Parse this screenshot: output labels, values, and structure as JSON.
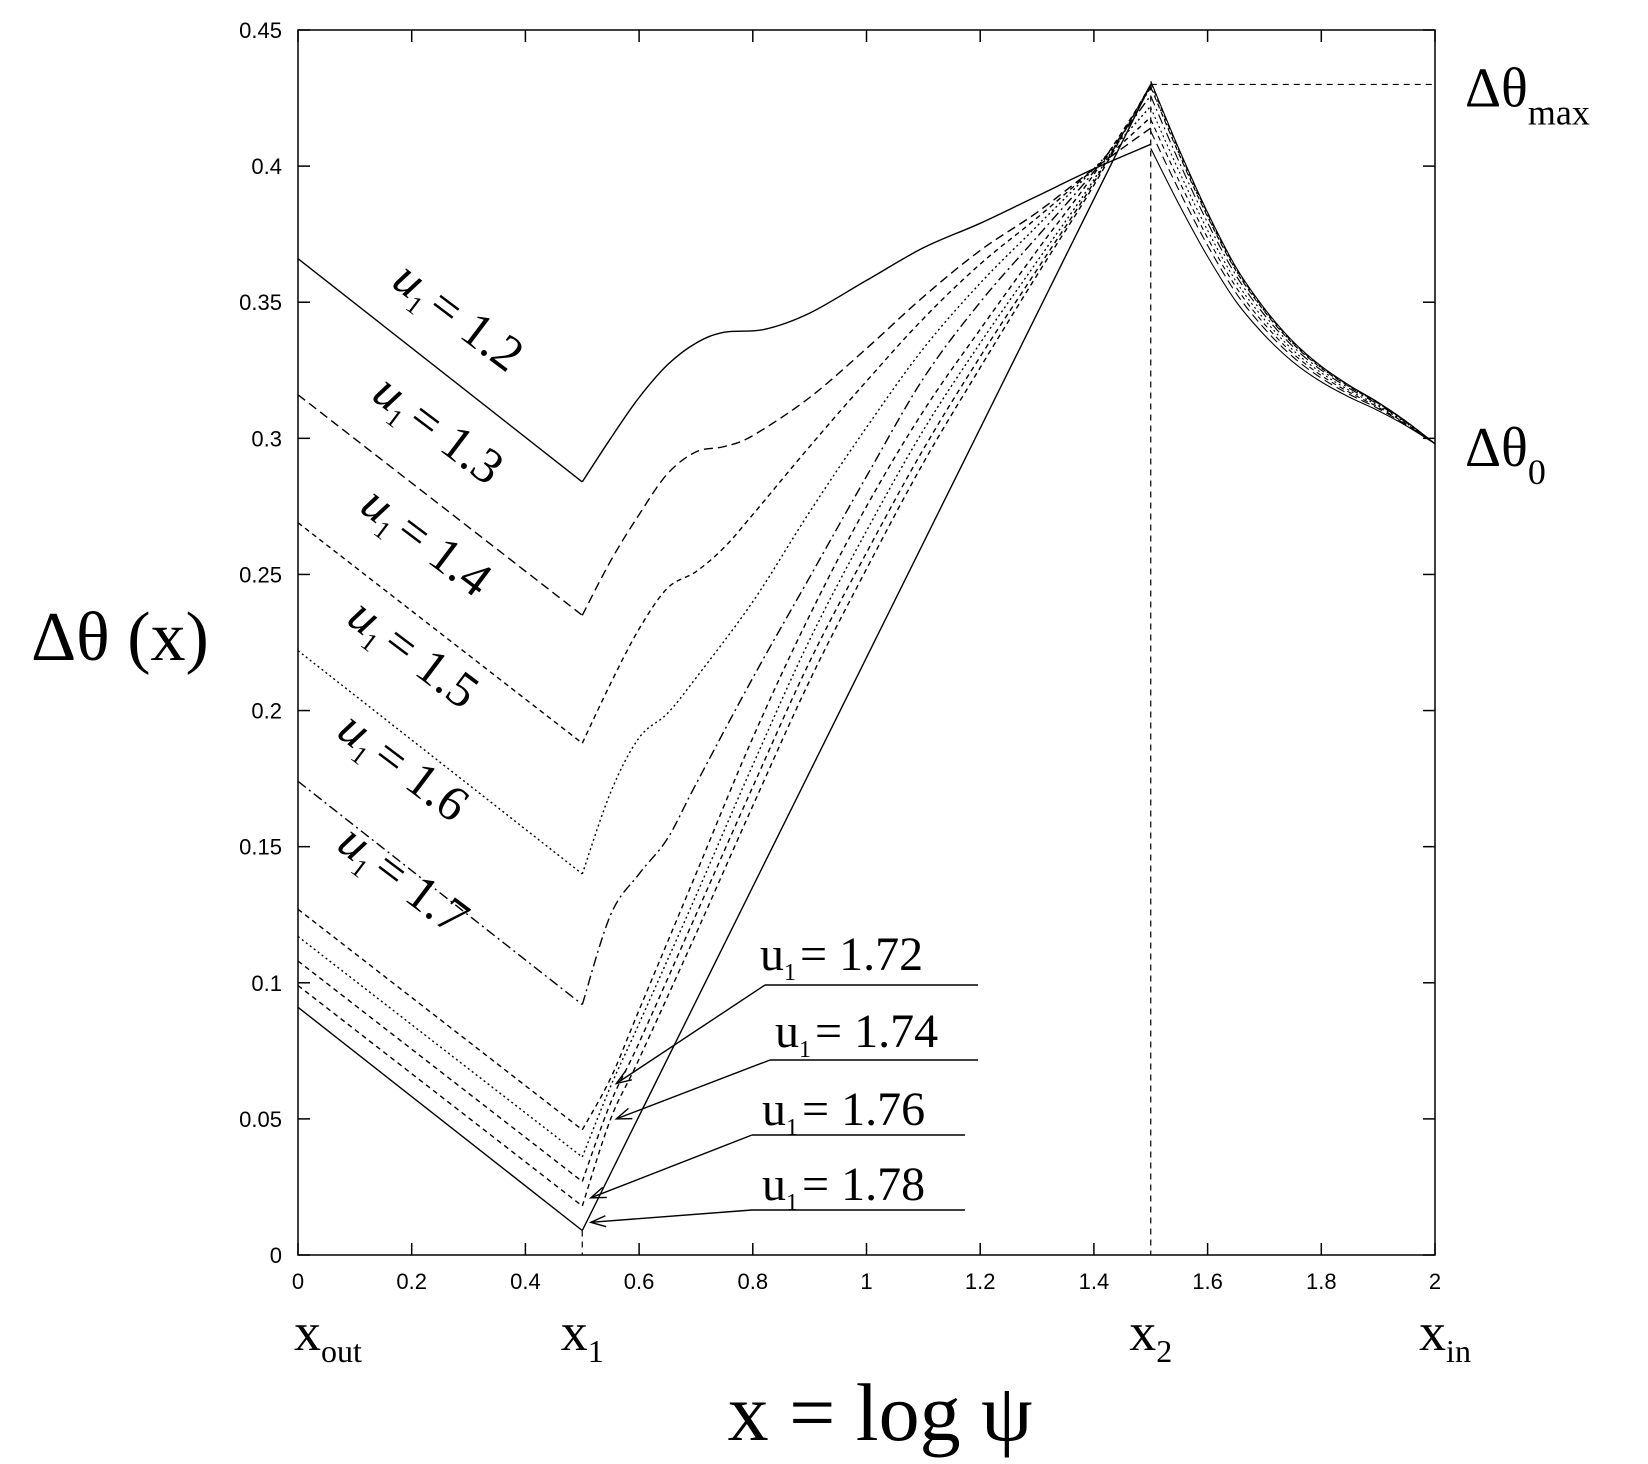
{
  "chart_data": {
    "type": "line",
    "ylabel": "Δθ (x)",
    "xlabel": "x = log ψ",
    "xlim": [
      0,
      2
    ],
    "ylim": [
      0,
      0.45
    ],
    "x_ticks": [
      "0",
      "0.2",
      "0.4",
      "0.6",
      "0.8",
      "1",
      "1.2",
      "1.4",
      "1.6",
      "1.8",
      "2"
    ],
    "y_ticks": [
      "0",
      "0.05",
      "0.1",
      "0.15",
      "0.2",
      "0.25",
      "0.3",
      "0.35",
      "0.4",
      "0.45"
    ],
    "x_markers": [
      {
        "x": 0,
        "main": "x",
        "sub": "out"
      },
      {
        "x": 0.5,
        "main": "x",
        "sub": "1"
      },
      {
        "x": 1.5,
        "main": "x",
        "sub": "2"
      },
      {
        "x": 2,
        "main": "x",
        "sub": "in"
      }
    ],
    "right_markers": [
      {
        "y": 0.43,
        "main": "Δθ",
        "sub": "max"
      },
      {
        "y": 0.298,
        "main": "Δθ",
        "sub": "0"
      }
    ],
    "x1": 0.5,
    "x2": 1.5,
    "theta_max": 0.43,
    "theta_0": 0.298,
    "series": [
      {
        "name": "u1 = 1.2",
        "label_main": "u",
        "label_sub": "1",
        "label_value": "= 1.2",
        "dash": "solid",
        "y_out": 0.366,
        "y_x1": 0.284,
        "y_x2": 0.408,
        "middle": [
          [
            0.5,
            0.284
          ],
          [
            0.55,
            0.3
          ],
          [
            0.6,
            0.315
          ],
          [
            0.65,
            0.327
          ],
          [
            0.7,
            0.335
          ],
          [
            0.75,
            0.339
          ],
          [
            0.82,
            0.34
          ],
          [
            0.9,
            0.346
          ],
          [
            1.0,
            0.358
          ],
          [
            1.1,
            0.37
          ],
          [
            1.2,
            0.379
          ],
          [
            1.3,
            0.389
          ],
          [
            1.4,
            0.399
          ],
          [
            1.5,
            0.408
          ]
        ]
      },
      {
        "name": "u1 = 1.3",
        "label_main": "u",
        "label_sub": "1",
        "label_value": "= 1.3",
        "dash": "long",
        "y_out": 0.316,
        "y_x1": 0.235,
        "y_x2": 0.414,
        "middle": [
          [
            0.5,
            0.235
          ],
          [
            0.55,
            0.255
          ],
          [
            0.6,
            0.272
          ],
          [
            0.65,
            0.287
          ],
          [
            0.7,
            0.295
          ],
          [
            0.75,
            0.297
          ],
          [
            0.8,
            0.301
          ],
          [
            0.9,
            0.315
          ],
          [
            1.0,
            0.333
          ],
          [
            1.1,
            0.352
          ],
          [
            1.2,
            0.369
          ],
          [
            1.3,
            0.383
          ],
          [
            1.4,
            0.399
          ],
          [
            1.5,
            0.414
          ]
        ]
      },
      {
        "name": "u1 = 1.4",
        "label_main": "u",
        "label_sub": "1",
        "label_value": "= 1.4",
        "dash": "short",
        "y_out": 0.269,
        "y_x1": 0.188,
        "y_x2": 0.418,
        "middle": [
          [
            0.5,
            0.188
          ],
          [
            0.55,
            0.21
          ],
          [
            0.6,
            0.23
          ],
          [
            0.65,
            0.245
          ],
          [
            0.7,
            0.251
          ],
          [
            0.75,
            0.26
          ],
          [
            0.8,
            0.272
          ],
          [
            0.9,
            0.297
          ],
          [
            1.0,
            0.321
          ],
          [
            1.1,
            0.344
          ],
          [
            1.2,
            0.364
          ],
          [
            1.3,
            0.381
          ],
          [
            1.4,
            0.399
          ],
          [
            1.5,
            0.418
          ]
        ]
      },
      {
        "name": "u1 = 1.5",
        "label_main": "u",
        "label_sub": "1",
        "label_value": "= 1.5",
        "dash": "dot",
        "y_out": 0.222,
        "y_x1": 0.14,
        "y_x2": 0.422,
        "middle": [
          [
            0.5,
            0.14
          ],
          [
            0.55,
            0.17
          ],
          [
            0.6,
            0.19
          ],
          [
            0.65,
            0.199
          ],
          [
            0.7,
            0.212
          ],
          [
            0.8,
            0.24
          ],
          [
            0.9,
            0.273
          ],
          [
            1.0,
            0.304
          ],
          [
            1.1,
            0.333
          ],
          [
            1.2,
            0.357
          ],
          [
            1.3,
            0.378
          ],
          [
            1.4,
            0.399
          ],
          [
            1.5,
            0.422
          ]
        ]
      },
      {
        "name": "u1 = 1.6",
        "label_main": "u",
        "label_sub": "1",
        "label_value": "= 1.6",
        "dash": "dashdot",
        "y_out": 0.174,
        "y_x1": 0.092,
        "y_x2": 0.426,
        "middle": [
          [
            0.5,
            0.092
          ],
          [
            0.55,
            0.125
          ],
          [
            0.6,
            0.14
          ],
          [
            0.65,
            0.153
          ],
          [
            0.7,
            0.173
          ],
          [
            0.8,
            0.212
          ],
          [
            0.9,
            0.249
          ],
          [
            1.0,
            0.286
          ],
          [
            1.1,
            0.322
          ],
          [
            1.2,
            0.35
          ],
          [
            1.3,
            0.374
          ],
          [
            1.4,
            0.398
          ],
          [
            1.5,
            0.426
          ]
        ]
      },
      {
        "name": "u1 = 1.7",
        "label_main": "u",
        "label_sub": "1",
        "label_value": "= 1.7",
        "dash": "short",
        "y_out": 0.127,
        "y_x1": 0.046,
        "y_x2": 0.429,
        "middle": [
          [
            0.5,
            0.046
          ],
          [
            0.55,
            0.065
          ],
          [
            0.6,
            0.09
          ],
          [
            0.7,
            0.14
          ],
          [
            0.8,
            0.19
          ],
          [
            0.9,
            0.235
          ],
          [
            1.0,
            0.275
          ],
          [
            1.1,
            0.31
          ],
          [
            1.2,
            0.34
          ],
          [
            1.3,
            0.369
          ],
          [
            1.4,
            0.397
          ],
          [
            1.5,
            0.429
          ]
        ]
      },
      {
        "name": "u1 = 1.72",
        "label_main": "u",
        "label_sub": "1",
        "label_value": "= 1.72",
        "dash": "dot",
        "y_out": 0.117,
        "y_x1": 0.036,
        "y_x2": 0.429,
        "middle": [
          [
            0.5,
            0.036
          ],
          [
            0.55,
            0.062
          ],
          [
            0.6,
            0.085
          ],
          [
            0.7,
            0.132
          ],
          [
            0.8,
            0.18
          ],
          [
            0.9,
            0.226
          ],
          [
            1.0,
            0.266
          ],
          [
            1.1,
            0.303
          ],
          [
            1.2,
            0.335
          ],
          [
            1.3,
            0.365
          ],
          [
            1.4,
            0.395
          ],
          [
            1.5,
            0.429
          ]
        ]
      },
      {
        "name": "u1 = 1.74",
        "label_main": "u",
        "label_sub": "1",
        "label_value": "= 1.74",
        "dash": "short",
        "y_out": 0.108,
        "y_x1": 0.027,
        "y_x2": 0.43,
        "middle": [
          [
            0.5,
            0.027
          ],
          [
            0.55,
            0.056
          ],
          [
            0.6,
            0.078
          ],
          [
            0.7,
            0.125
          ],
          [
            0.8,
            0.172
          ],
          [
            0.9,
            0.218
          ],
          [
            1.0,
            0.258
          ],
          [
            1.1,
            0.296
          ],
          [
            1.2,
            0.33
          ],
          [
            1.3,
            0.362
          ],
          [
            1.4,
            0.394
          ],
          [
            1.5,
            0.43
          ]
        ]
      },
      {
        "name": "u1 = 1.76",
        "label_main": "u",
        "label_sub": "1",
        "label_value": "= 1.76",
        "dash": "short",
        "y_out": 0.099,
        "y_x1": 0.018,
        "y_x2": 0.43,
        "middle": [
          [
            0.5,
            0.018
          ],
          [
            0.55,
            0.05
          ],
          [
            0.6,
            0.072
          ],
          [
            0.7,
            0.118
          ],
          [
            0.8,
            0.165
          ],
          [
            0.9,
            0.211
          ],
          [
            1.0,
            0.252
          ],
          [
            1.1,
            0.291
          ],
          [
            1.2,
            0.326
          ],
          [
            1.3,
            0.36
          ],
          [
            1.4,
            0.393
          ],
          [
            1.5,
            0.43
          ]
        ]
      },
      {
        "name": "u1 = 1.78",
        "label_main": "u",
        "label_sub": "1",
        "label_value": "= 1.78",
        "dash": "solid",
        "y_out": 0.091,
        "y_x1": 0.009,
        "y_x2": 0.43,
        "middle": [
          [
            0.5,
            0.009
          ],
          [
            1.5,
            0.43
          ]
        ]
      }
    ],
    "decay": [
      [
        1.5,
        0.43
      ],
      [
        1.55,
        0.405
      ],
      [
        1.6,
        0.382
      ],
      [
        1.65,
        0.362
      ],
      [
        1.7,
        0.347
      ],
      [
        1.75,
        0.335
      ],
      [
        1.8,
        0.326
      ],
      [
        1.85,
        0.319
      ],
      [
        1.9,
        0.313
      ],
      [
        1.95,
        0.306
      ],
      [
        2.0,
        0.298
      ]
    ]
  }
}
